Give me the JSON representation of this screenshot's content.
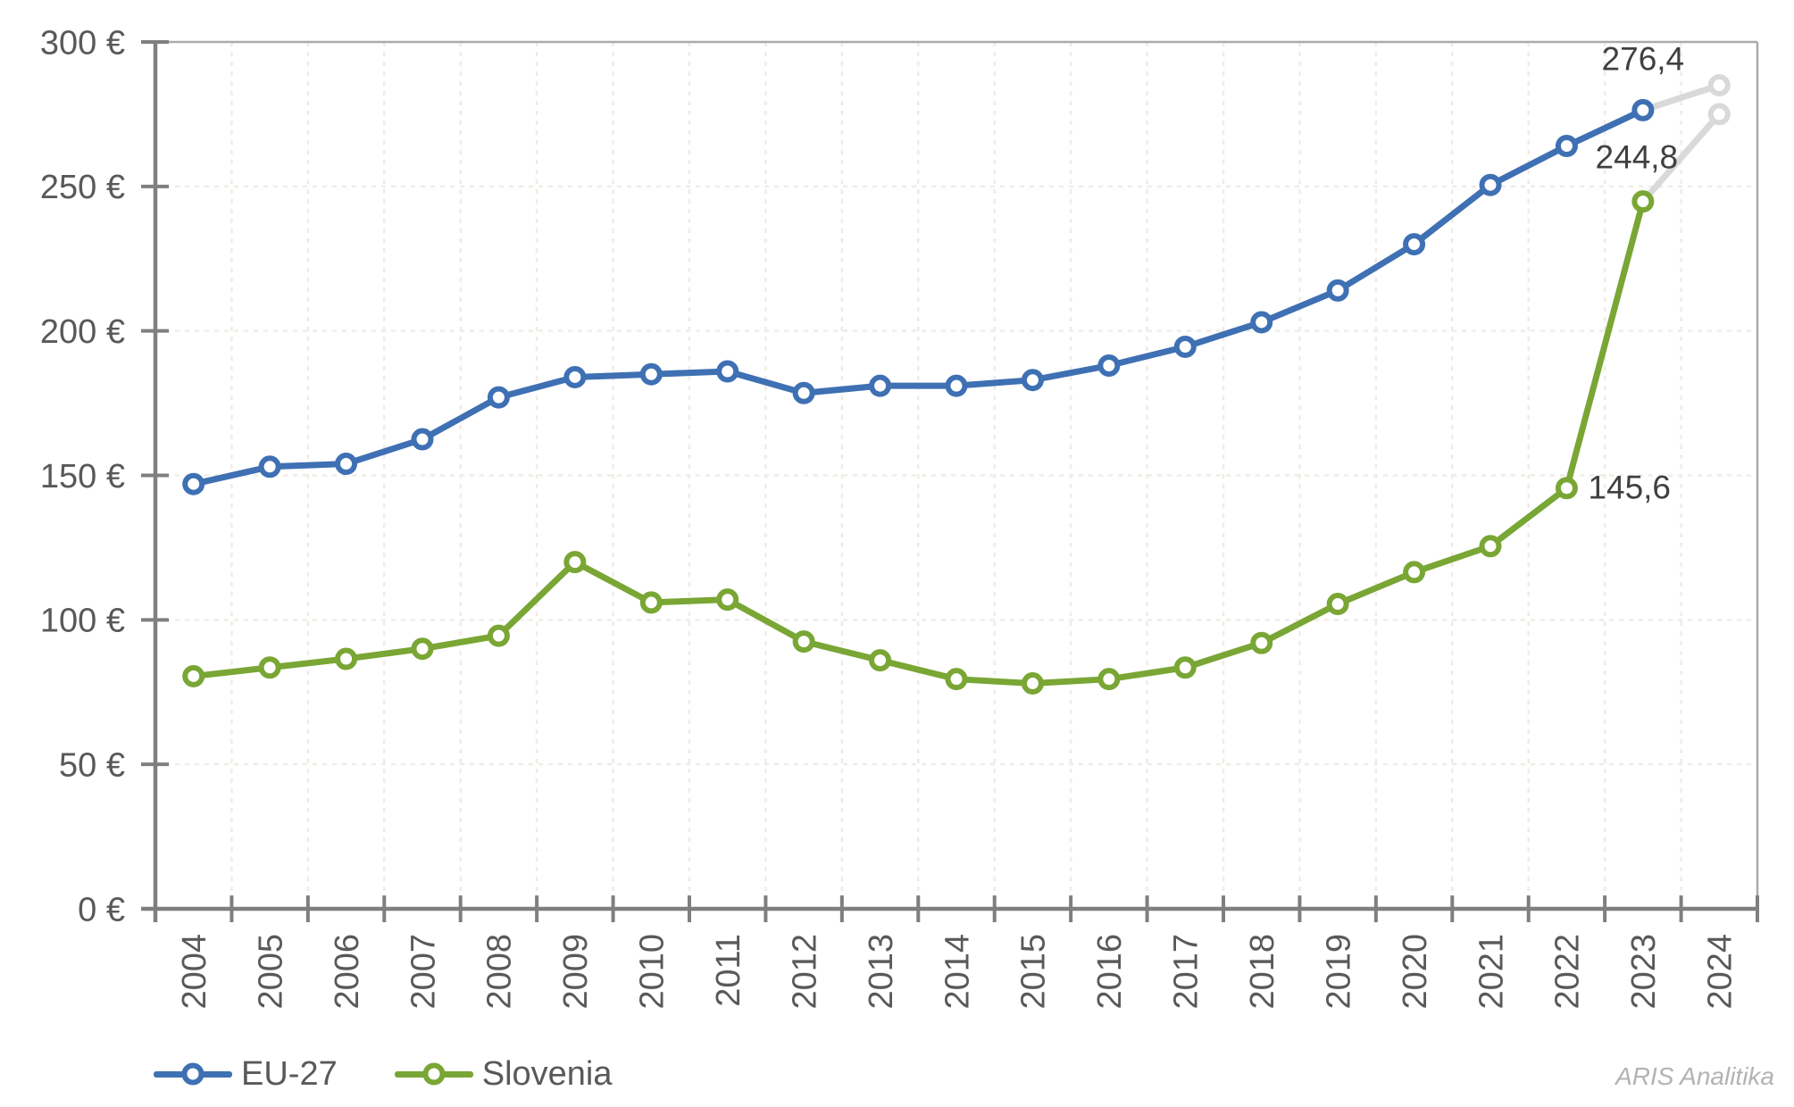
{
  "watermark": "ARIS Analitika",
  "legend": {
    "items": [
      {
        "label": "EU-27"
      },
      {
        "label": "Slovenia"
      }
    ]
  },
  "palette": {
    "eu_blue": "#3E70B3",
    "slovenia_green": "#79A634",
    "provisional_gray": "#D9D9D9",
    "axis_text": "#595959",
    "data_label_text": "#404040",
    "axis_line": "#7F7F7F",
    "plot_border": "#ABABAB",
    "gridline": "#F0ECE6",
    "watermark_gray": "#B3B3B3",
    "background": "#FFFFFF"
  },
  "chart_data": {
    "type": "line",
    "title": "",
    "x_categories": [
      "2004",
      "2005",
      "2006",
      "2007",
      "2008",
      "2009",
      "2010",
      "2011",
      "2012",
      "2013",
      "2014",
      "2015",
      "2016",
      "2017",
      "2018",
      "2019",
      "2020",
      "2021",
      "2022",
      "2023",
      "2024"
    ],
    "ylim": [
      0,
      300
    ],
    "ytick_step": 50,
    "ytick_labels": [
      "0 €",
      "50 €",
      "100 €",
      "150 €",
      "200 €",
      "250 €",
      "300 €"
    ],
    "currency_unit": "€",
    "grid": {
      "horizontal": true,
      "vertical": true,
      "style": "dashed"
    },
    "legend_position": "bottom-left",
    "series": [
      {
        "name": "EU-27",
        "color": "#3E70B3",
        "marker": "circle",
        "values": [
          147,
          153,
          154,
          162.5,
          177,
          184,
          185,
          186,
          178.5,
          181,
          181,
          183,
          188,
          194.5,
          203,
          214,
          230,
          250.5,
          264,
          276.4,
          285
        ],
        "provisional_from_index": 19,
        "provisional_color": "#D9D9D9"
      },
      {
        "name": "Slovenia",
        "color": "#79A634",
        "marker": "circle",
        "values": [
          80.5,
          83.5,
          86.5,
          90,
          94.5,
          120,
          106,
          107,
          92.5,
          86,
          79.5,
          78,
          79.5,
          83.5,
          92,
          105.5,
          116.5,
          125.5,
          145.6,
          244.8,
          275
        ],
        "provisional_from_index": 19,
        "provisional_color": "#D9D9D9"
      }
    ],
    "data_labels": [
      {
        "series": 0,
        "index": 19,
        "text": "276,4",
        "position": "above"
      },
      {
        "series": 1,
        "index": 19,
        "text": "244,8",
        "position": "above"
      },
      {
        "series": 1,
        "index": 18,
        "text": "145,6",
        "position": "right"
      }
    ]
  }
}
